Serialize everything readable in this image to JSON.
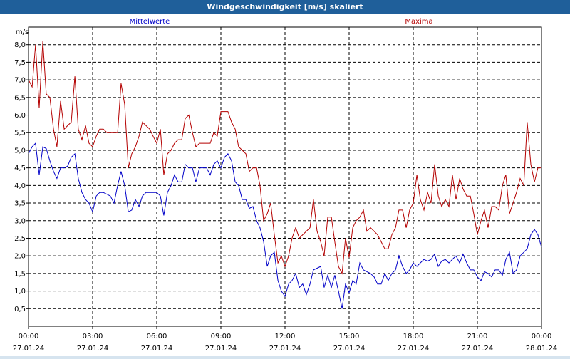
{
  "window": {
    "title": "Windgeschwindigkeit [m/s] skaliert"
  },
  "chart_data": {
    "type": "line",
    "title": "Windgeschwindigkeit [m/s] skaliert",
    "ylabel": "m/s",
    "ylim": [
      0,
      8.5
    ],
    "yticks": [
      "0,5",
      "1,0",
      "1,5",
      "2,0",
      "2,5",
      "3,0",
      "3,5",
      "4,0",
      "4,5",
      "5,0",
      "5,5",
      "6,0",
      "6,5",
      "7,0",
      "7,5",
      "8,0"
    ],
    "xlim_hours": [
      0,
      24
    ],
    "xticks": [
      {
        "time": "00:00",
        "date": "27.01.24"
      },
      {
        "time": "03:00",
        "date": "27.01.24"
      },
      {
        "time": "06:00",
        "date": "27.01.24"
      },
      {
        "time": "09:00",
        "date": "27.01.24"
      },
      {
        "time": "12:00",
        "date": "27.01.24"
      },
      {
        "time": "15:00",
        "date": "27.01.24"
      },
      {
        "time": "18:00",
        "date": "27.01.24"
      },
      {
        "time": "21:00",
        "date": "27.01.24"
      },
      {
        "time": "00:00",
        "date": "28.01.24"
      }
    ],
    "grid": true,
    "series": [
      {
        "name": "Mittelwerte",
        "color": "#0000c8",
        "points": [
          [
            0,
            4.9
          ],
          [
            0.17,
            5.1
          ],
          [
            0.33,
            5.2
          ],
          [
            0.5,
            4.3
          ],
          [
            0.67,
            5.1
          ],
          [
            0.83,
            5.05
          ],
          [
            1.0,
            4.7
          ],
          [
            1.17,
            4.4
          ],
          [
            1.33,
            4.2
          ],
          [
            1.5,
            4.5
          ],
          [
            1.67,
            4.5
          ],
          [
            1.83,
            4.55
          ],
          [
            2.0,
            4.8
          ],
          [
            2.17,
            4.9
          ],
          [
            2.33,
            4.2
          ],
          [
            2.5,
            3.8
          ],
          [
            2.67,
            3.6
          ],
          [
            2.83,
            3.5
          ],
          [
            3.0,
            3.25
          ],
          [
            3.17,
            3.7
          ],
          [
            3.33,
            3.8
          ],
          [
            3.5,
            3.8
          ],
          [
            3.67,
            3.75
          ],
          [
            3.83,
            3.7
          ],
          [
            4.0,
            3.5
          ],
          [
            4.17,
            4.0
          ],
          [
            4.33,
            4.4
          ],
          [
            4.5,
            4.0
          ],
          [
            4.67,
            3.25
          ],
          [
            4.83,
            3.3
          ],
          [
            5.0,
            3.6
          ],
          [
            5.17,
            3.4
          ],
          [
            5.33,
            3.7
          ],
          [
            5.5,
            3.8
          ],
          [
            5.67,
            3.8
          ],
          [
            5.83,
            3.8
          ],
          [
            6.0,
            3.8
          ],
          [
            6.17,
            3.7
          ],
          [
            6.33,
            3.15
          ],
          [
            6.5,
            3.8
          ],
          [
            6.67,
            4.0
          ],
          [
            6.83,
            4.3
          ],
          [
            7.0,
            4.1
          ],
          [
            7.17,
            4.1
          ],
          [
            7.33,
            4.6
          ],
          [
            7.5,
            4.5
          ],
          [
            7.67,
            4.5
          ],
          [
            7.83,
            4.1
          ],
          [
            8.0,
            4.5
          ],
          [
            8.17,
            4.5
          ],
          [
            8.33,
            4.5
          ],
          [
            8.5,
            4.3
          ],
          [
            8.67,
            4.6
          ],
          [
            8.83,
            4.7
          ],
          [
            9.0,
            4.5
          ],
          [
            9.17,
            4.8
          ],
          [
            9.33,
            4.9
          ],
          [
            9.5,
            4.7
          ],
          [
            9.67,
            4.1
          ],
          [
            9.83,
            4.0
          ],
          [
            10.0,
            3.6
          ],
          [
            10.17,
            3.6
          ],
          [
            10.33,
            3.35
          ],
          [
            10.5,
            3.4
          ],
          [
            10.67,
            3.0
          ],
          [
            10.83,
            2.8
          ],
          [
            11.0,
            2.4
          ],
          [
            11.17,
            1.7
          ],
          [
            11.33,
            2.0
          ],
          [
            11.5,
            2.1
          ],
          [
            11.67,
            1.3
          ],
          [
            11.83,
            1.0
          ],
          [
            12.0,
            0.85
          ],
          [
            12.17,
            1.2
          ],
          [
            12.33,
            1.3
          ],
          [
            12.5,
            1.5
          ],
          [
            12.67,
            1.1
          ],
          [
            12.83,
            1.2
          ],
          [
            13.0,
            0.9
          ],
          [
            13.17,
            1.2
          ],
          [
            13.33,
            1.6
          ],
          [
            13.5,
            1.65
          ],
          [
            13.67,
            1.7
          ],
          [
            13.83,
            1.1
          ],
          [
            14.0,
            1.45
          ],
          [
            14.17,
            1.1
          ],
          [
            14.33,
            1.45
          ],
          [
            14.5,
            1.0
          ],
          [
            14.67,
            0.5
          ],
          [
            14.83,
            1.2
          ],
          [
            15.0,
            0.95
          ],
          [
            15.17,
            1.3
          ],
          [
            15.33,
            1.2
          ],
          [
            15.5,
            1.8
          ],
          [
            15.67,
            1.6
          ],
          [
            15.83,
            1.55
          ],
          [
            16.0,
            1.5
          ],
          [
            16.17,
            1.4
          ],
          [
            16.33,
            1.2
          ],
          [
            16.5,
            1.2
          ],
          [
            16.67,
            1.5
          ],
          [
            16.83,
            1.3
          ],
          [
            17.0,
            1.5
          ],
          [
            17.17,
            1.6
          ],
          [
            17.33,
            2.0
          ],
          [
            17.5,
            1.7
          ],
          [
            17.67,
            1.5
          ],
          [
            17.83,
            1.6
          ],
          [
            18.0,
            1.8
          ],
          [
            18.17,
            1.7
          ],
          [
            18.33,
            1.8
          ],
          [
            18.5,
            1.9
          ],
          [
            18.67,
            1.85
          ],
          [
            18.83,
            1.9
          ],
          [
            19.0,
            2.05
          ],
          [
            19.17,
            1.7
          ],
          [
            19.33,
            1.85
          ],
          [
            19.5,
            1.9
          ],
          [
            19.67,
            1.8
          ],
          [
            19.83,
            1.9
          ],
          [
            20.0,
            2.0
          ],
          [
            20.17,
            1.8
          ],
          [
            20.33,
            2.05
          ],
          [
            20.5,
            1.8
          ],
          [
            20.67,
            1.6
          ],
          [
            20.83,
            1.6
          ],
          [
            21.0,
            1.4
          ],
          [
            21.17,
            1.3
          ],
          [
            21.33,
            1.55
          ],
          [
            21.5,
            1.5
          ],
          [
            21.67,
            1.4
          ],
          [
            21.83,
            1.6
          ],
          [
            22.0,
            1.6
          ],
          [
            22.17,
            1.45
          ],
          [
            22.33,
            1.9
          ],
          [
            22.5,
            2.1
          ],
          [
            22.67,
            1.5
          ],
          [
            22.83,
            1.6
          ],
          [
            23.0,
            2.0
          ],
          [
            23.17,
            2.1
          ],
          [
            23.33,
            2.2
          ],
          [
            23.5,
            2.6
          ],
          [
            23.67,
            2.75
          ],
          [
            23.83,
            2.6
          ],
          [
            24.0,
            2.25
          ]
        ]
      },
      {
        "name": "Maxima",
        "color": "#b40000",
        "points": [
          [
            0,
            7.0
          ],
          [
            0.17,
            6.8
          ],
          [
            0.33,
            8.0
          ],
          [
            0.5,
            6.2
          ],
          [
            0.67,
            8.1
          ],
          [
            0.83,
            6.6
          ],
          [
            1.0,
            6.5
          ],
          [
            1.17,
            5.6
          ],
          [
            1.33,
            5.1
          ],
          [
            1.5,
            6.4
          ],
          [
            1.67,
            5.6
          ],
          [
            1.83,
            5.7
          ],
          [
            2.0,
            5.8
          ],
          [
            2.17,
            7.1
          ],
          [
            2.33,
            5.6
          ],
          [
            2.5,
            5.3
          ],
          [
            2.67,
            5.7
          ],
          [
            2.83,
            5.2
          ],
          [
            3.0,
            5.1
          ],
          [
            3.17,
            5.4
          ],
          [
            3.33,
            5.6
          ],
          [
            3.5,
            5.6
          ],
          [
            3.67,
            5.5
          ],
          [
            3.83,
            5.5
          ],
          [
            4.0,
            5.5
          ],
          [
            4.17,
            5.5
          ],
          [
            4.33,
            6.9
          ],
          [
            4.5,
            6.3
          ],
          [
            4.67,
            4.5
          ],
          [
            4.83,
            4.9
          ],
          [
            5.0,
            5.1
          ],
          [
            5.17,
            5.4
          ],
          [
            5.33,
            5.8
          ],
          [
            5.5,
            5.7
          ],
          [
            5.67,
            5.6
          ],
          [
            5.83,
            5.4
          ],
          [
            6.0,
            5.2
          ],
          [
            6.17,
            5.6
          ],
          [
            6.33,
            4.3
          ],
          [
            6.5,
            4.9
          ],
          [
            6.67,
            5.0
          ],
          [
            6.83,
            5.2
          ],
          [
            7.0,
            5.3
          ],
          [
            7.17,
            5.3
          ],
          [
            7.33,
            5.9
          ],
          [
            7.5,
            6.0
          ],
          [
            7.67,
            5.5
          ],
          [
            7.83,
            5.1
          ],
          [
            8.0,
            5.2
          ],
          [
            8.17,
            5.2
          ],
          [
            8.33,
            5.2
          ],
          [
            8.5,
            5.2
          ],
          [
            8.67,
            5.5
          ],
          [
            8.83,
            5.4
          ],
          [
            9.0,
            6.1
          ],
          [
            9.17,
            6.1
          ],
          [
            9.33,
            6.1
          ],
          [
            9.5,
            5.8
          ],
          [
            9.67,
            5.6
          ],
          [
            9.83,
            5.1
          ],
          [
            10.0,
            5.0
          ],
          [
            10.17,
            4.9
          ],
          [
            10.33,
            4.4
          ],
          [
            10.5,
            4.5
          ],
          [
            10.67,
            4.5
          ],
          [
            10.83,
            4.0
          ],
          [
            11.0,
            3.0
          ],
          [
            11.17,
            3.2
          ],
          [
            11.33,
            3.5
          ],
          [
            11.5,
            2.6
          ],
          [
            11.67,
            1.8
          ],
          [
            11.83,
            2.0
          ],
          [
            12.0,
            1.7
          ],
          [
            12.17,
            2.0
          ],
          [
            12.33,
            2.5
          ],
          [
            12.5,
            2.8
          ],
          [
            12.67,
            2.5
          ],
          [
            12.83,
            2.6
          ],
          [
            13.0,
            2.7
          ],
          [
            13.17,
            2.8
          ],
          [
            13.33,
            3.6
          ],
          [
            13.5,
            2.7
          ],
          [
            13.67,
            2.4
          ],
          [
            13.83,
            2.0
          ],
          [
            14.0,
            3.1
          ],
          [
            14.17,
            3.1
          ],
          [
            14.33,
            2.4
          ],
          [
            14.5,
            1.7
          ],
          [
            14.67,
            1.5
          ],
          [
            14.83,
            2.5
          ],
          [
            15.0,
            1.95
          ],
          [
            15.17,
            2.8
          ],
          [
            15.33,
            3.0
          ],
          [
            15.5,
            3.1
          ],
          [
            15.67,
            3.3
          ],
          [
            15.83,
            2.7
          ],
          [
            16.0,
            2.8
          ],
          [
            16.17,
            2.7
          ],
          [
            16.33,
            2.6
          ],
          [
            16.5,
            2.4
          ],
          [
            16.67,
            2.2
          ],
          [
            16.83,
            2.2
          ],
          [
            17.0,
            2.6
          ],
          [
            17.17,
            2.8
          ],
          [
            17.33,
            3.3
          ],
          [
            17.5,
            3.3
          ],
          [
            17.67,
            2.8
          ],
          [
            17.83,
            3.3
          ],
          [
            18.0,
            3.5
          ],
          [
            18.17,
            4.3
          ],
          [
            18.33,
            3.6
          ],
          [
            18.5,
            3.3
          ],
          [
            18.67,
            3.8
          ],
          [
            18.83,
            3.5
          ],
          [
            19.0,
            4.6
          ],
          [
            19.17,
            3.7
          ],
          [
            19.33,
            3.4
          ],
          [
            19.5,
            3.6
          ],
          [
            19.67,
            3.4
          ],
          [
            19.83,
            4.3
          ],
          [
            20.0,
            3.6
          ],
          [
            20.17,
            4.2
          ],
          [
            20.33,
            3.9
          ],
          [
            20.5,
            3.7
          ],
          [
            20.67,
            3.7
          ],
          [
            20.83,
            3.2
          ],
          [
            21.0,
            2.6
          ],
          [
            21.17,
            3.0
          ],
          [
            21.33,
            3.3
          ],
          [
            21.5,
            2.8
          ],
          [
            21.67,
            3.4
          ],
          [
            21.83,
            3.4
          ],
          [
            22.0,
            3.3
          ],
          [
            22.17,
            4.0
          ],
          [
            22.33,
            4.3
          ],
          [
            22.5,
            3.2
          ],
          [
            22.67,
            3.5
          ],
          [
            22.83,
            3.8
          ],
          [
            23.0,
            4.2
          ],
          [
            23.17,
            4.0
          ],
          [
            23.33,
            5.8
          ],
          [
            23.5,
            4.6
          ],
          [
            23.67,
            4.1
          ],
          [
            23.83,
            4.5
          ],
          [
            24.0,
            4.5
          ]
        ]
      }
    ]
  }
}
